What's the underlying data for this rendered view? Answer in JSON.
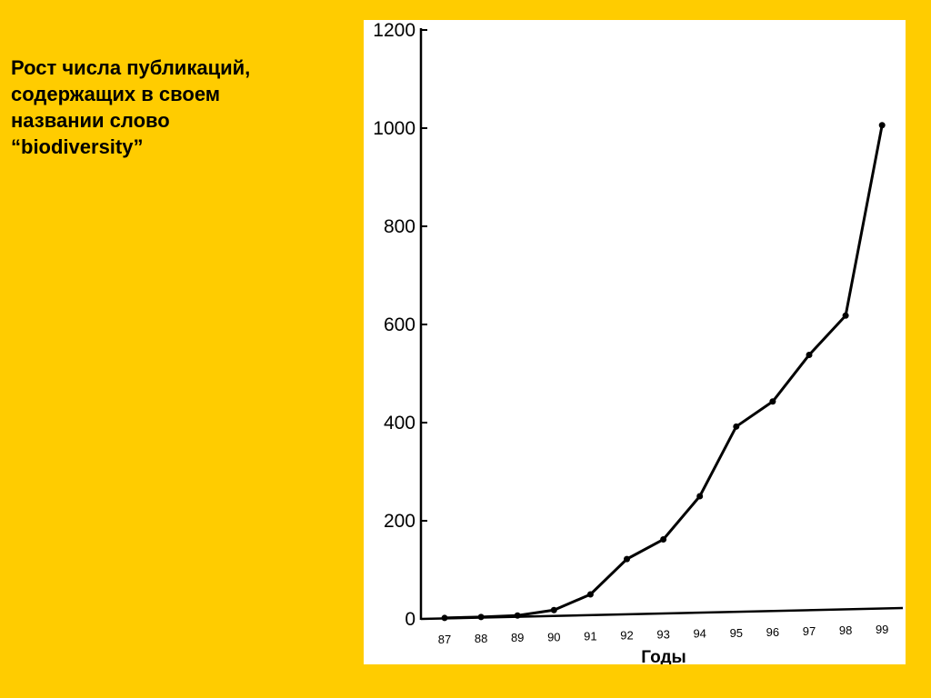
{
  "slide": {
    "caption_lines": [
      "Рост числа публикаций,",
      "содержащих в своем",
      "названии слово",
      "“biodiversity”"
    ],
    "background_color": "#FFCC00",
    "panel_color": "#FFFFFF"
  },
  "chart_data": {
    "type": "line",
    "title": "",
    "xlabel": "Годы",
    "ylabel": "",
    "categories": [
      "87",
      "88",
      "89",
      "90",
      "91",
      "92",
      "93",
      "94",
      "95",
      "96",
      "97",
      "98",
      "99"
    ],
    "series": [
      {
        "values": [
          2,
          4,
          7,
          18,
          50,
          122,
          162,
          250,
          392,
          443,
          538,
          618,
          1006
        ],
        "color": "#000000"
      }
    ],
    "ylim": [
      0,
      1200
    ],
    "yticks": [
      "0",
      "200",
      "400",
      "600",
      "800",
      "1000",
      "1200"
    ],
    "grid": false,
    "legend": "none"
  }
}
